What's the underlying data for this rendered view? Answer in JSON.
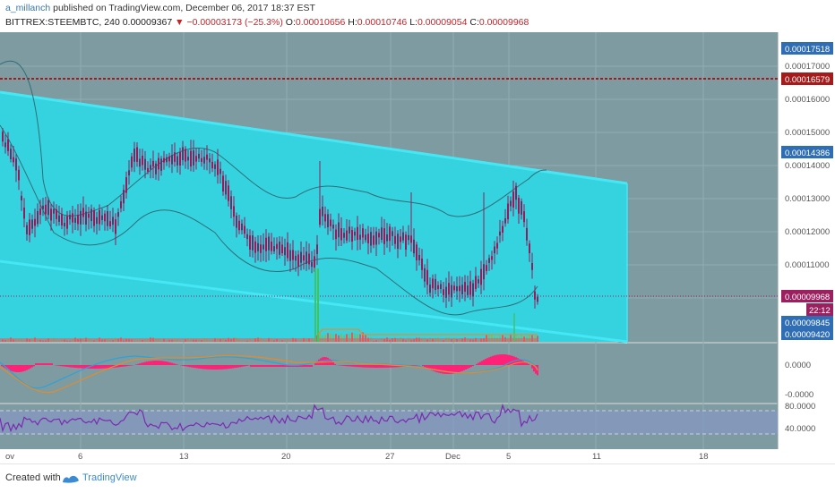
{
  "header": {
    "author": "a_millanch",
    "published_text": " published on TradingView.com, December 06, 2017 18:37 EST",
    "symbol": "BITTREX:STEEMBTC, 240",
    "last": "0.00009367",
    "down_arrow": "▼",
    "change": "−0.00003173 (−25.3%)",
    "o_label": "O:",
    "o_value": "0.00010656",
    "h_label": "H:",
    "h_value": "0.00010746",
    "l_label": "L:",
    "l_value": "0.00009054",
    "c_label": "C:",
    "c_value": "0.00009968"
  },
  "price_axis": {
    "ticks": [
      "0.00017000",
      "0.00016000",
      "0.00015000",
      "0.00014000",
      "0.00013000",
      "0.00012000",
      "0.00011000"
    ],
    "badges": [
      {
        "text": "0.00017518",
        "color": "#2f6eb5"
      },
      {
        "text": "0.00016579",
        "color": "#a51a1a"
      },
      {
        "text": "0.00014386",
        "color": "#2f6eb5"
      },
      {
        "text": "0.00009968",
        "color": "#9c2060"
      },
      {
        "text": "22:12",
        "color": "#9c2060"
      },
      {
        "text": "0.00009845",
        "color": "#2f6eb5"
      },
      {
        "text": "0.00009420",
        "color": "#2f6eb5"
      }
    ]
  },
  "macd_axis": {
    "ticks": [
      "0.0000",
      "-0.0000"
    ]
  },
  "rsi_axis": {
    "ticks": [
      "80.0000",
      "40.0000"
    ]
  },
  "time_axis": {
    "ticks": [
      "ov",
      "6",
      "13",
      "20",
      "27",
      "Dec",
      "5",
      "11",
      "18"
    ]
  },
  "footer": {
    "created_with": "Created with",
    "brand": "TradingView"
  },
  "colors": {
    "chart_bg": "#7d9ba0",
    "channel": "#35d3df",
    "channel_border": "#45e7f5",
    "candle": "#8e1f5c",
    "resistance": "#a51a1a",
    "macd_hist": "#ff2277",
    "rsi_band": "#8898c4",
    "rsi_line": "#7a2ab0"
  }
}
